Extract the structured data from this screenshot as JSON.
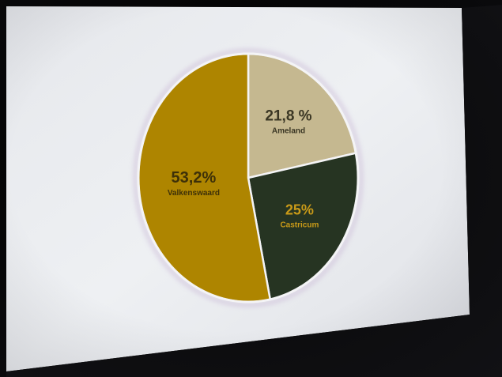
{
  "chart_data": {
    "type": "pie",
    "title": "",
    "slices": [
      {
        "label": "Ameland",
        "value": 21.8,
        "display": "21,8 %",
        "color": "#c5b890",
        "text_color": "#3a3624"
      },
      {
        "label": "Castricum",
        "value": 25,
        "display": "25%",
        "color": "#263422",
        "text_color": "#c99a18"
      },
      {
        "label": "Valkenswaard",
        "value": 53.2,
        "display": "53,2%",
        "color": "#ae8500",
        "text_color": "#3d3008"
      }
    ],
    "legend": "none",
    "start": "top",
    "direction": "clockwise"
  },
  "colors": {
    "screen": "#eceef2",
    "bezel": "#0c0c0e",
    "slice_border": "#f4f4f6",
    "halo": "#c9b8d6"
  }
}
